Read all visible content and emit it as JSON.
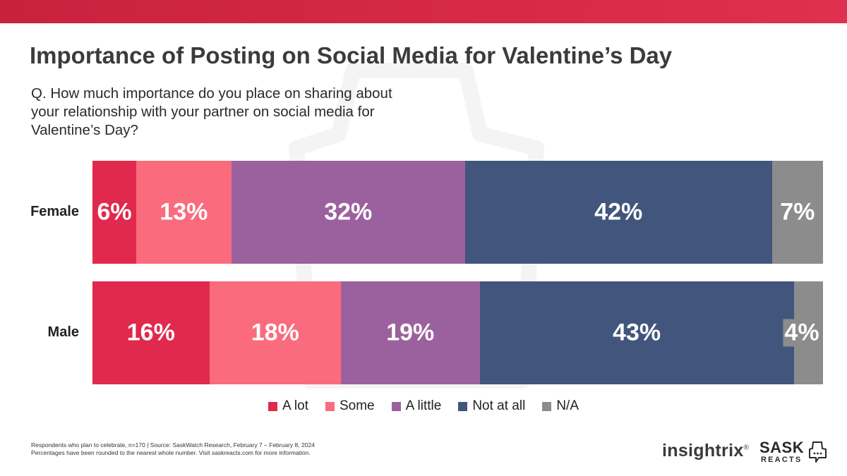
{
  "title": "Importance of Posting on Social Media for Valentine’s Day",
  "question": "Q. How much importance do you place on sharing about your relationship with your partner on social media for Valentine’s Day?",
  "colors": {
    "topbar_start": "#c8213e",
    "topbar_end": "#e0304f",
    "a_lot": "#e0294d",
    "some": "#fa6b7d",
    "a_little": "#9b619e",
    "not_at_all": "#42557c",
    "na": "#8c8c8c"
  },
  "chart_data": {
    "type": "bar",
    "orientation": "horizontal",
    "stacked": true,
    "categories": [
      "Female",
      "Male"
    ],
    "series": [
      {
        "name": "A lot",
        "values": [
          6,
          16
        ],
        "labels": [
          "6%",
          "16%"
        ]
      },
      {
        "name": "Some",
        "values": [
          13,
          18
        ],
        "labels": [
          "13%",
          "18%"
        ]
      },
      {
        "name": "A little",
        "values": [
          32,
          19
        ],
        "labels": [
          "32%",
          "19%"
        ]
      },
      {
        "name": "Not at all",
        "values": [
          42,
          43
        ],
        "labels": [
          "42%",
          "43%"
        ]
      },
      {
        "name": "N/A",
        "values": [
          7,
          4
        ],
        "labels": [
          "7%",
          "4%"
        ]
      }
    ],
    "xlim": [
      0,
      100
    ],
    "legend": "bottom"
  },
  "legend": {
    "items": [
      "A lot",
      "Some",
      "A little",
      "Not at all",
      "N/A"
    ]
  },
  "footnote": {
    "line1": "Respondents who plan to celebrate, n=170 | Source: SaskWatch Research, February 7 – February 8, 2024",
    "line2": "Percentages have been rounded to the nearest whole number. Visit saskreacts.com for more information."
  },
  "logos": {
    "insightrix": "insightrix",
    "registered": "®",
    "sask": "SASK",
    "reacts": "REACTS"
  }
}
